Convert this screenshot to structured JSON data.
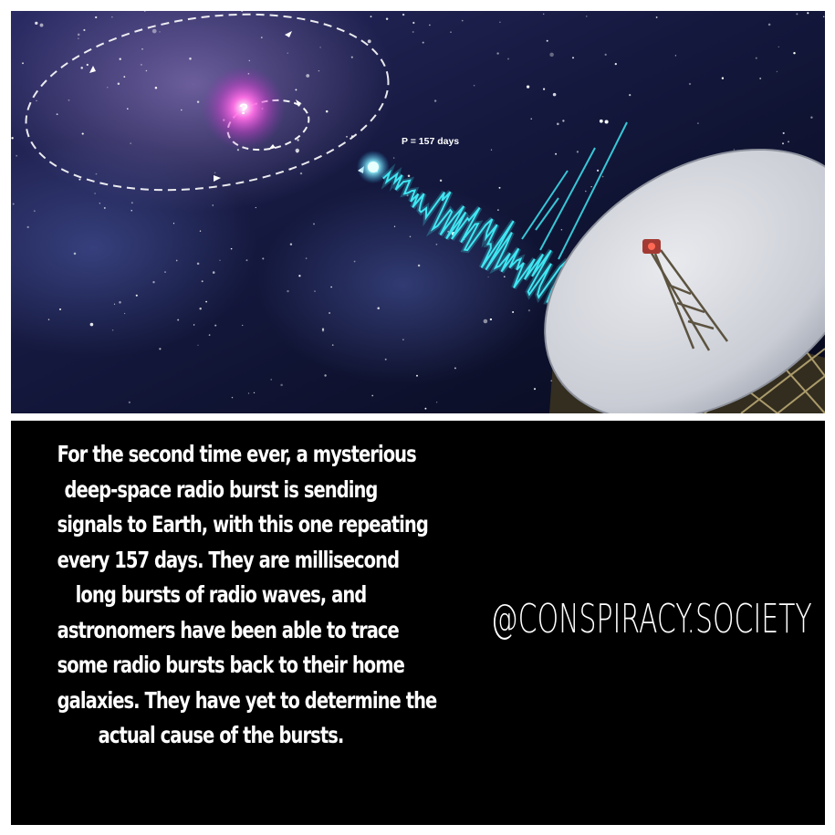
{
  "artwork": {
    "period_label": "P = 157 days",
    "question_mark": "?"
  },
  "caption": {
    "lines": [
      "For the second time ever, a mysterious",
      "deep-space radio burst is sending",
      "signals to Earth, with this one repeating",
      "every 157 days. They are millisecond",
      "long bursts of radio waves, and",
      "astronomers have been able to trace",
      "some radio bursts back to their home",
      "galaxies. They have yet to determine the",
      "actual cause of the bursts."
    ]
  },
  "handle": "@CONSPIRACY.SOCIETY",
  "colors": {
    "background": "#ffffff",
    "text_panel": "#000000",
    "caption_text": "#ffffff",
    "signal": "#3fe6f2",
    "question_glow": "#ff3fd6"
  }
}
